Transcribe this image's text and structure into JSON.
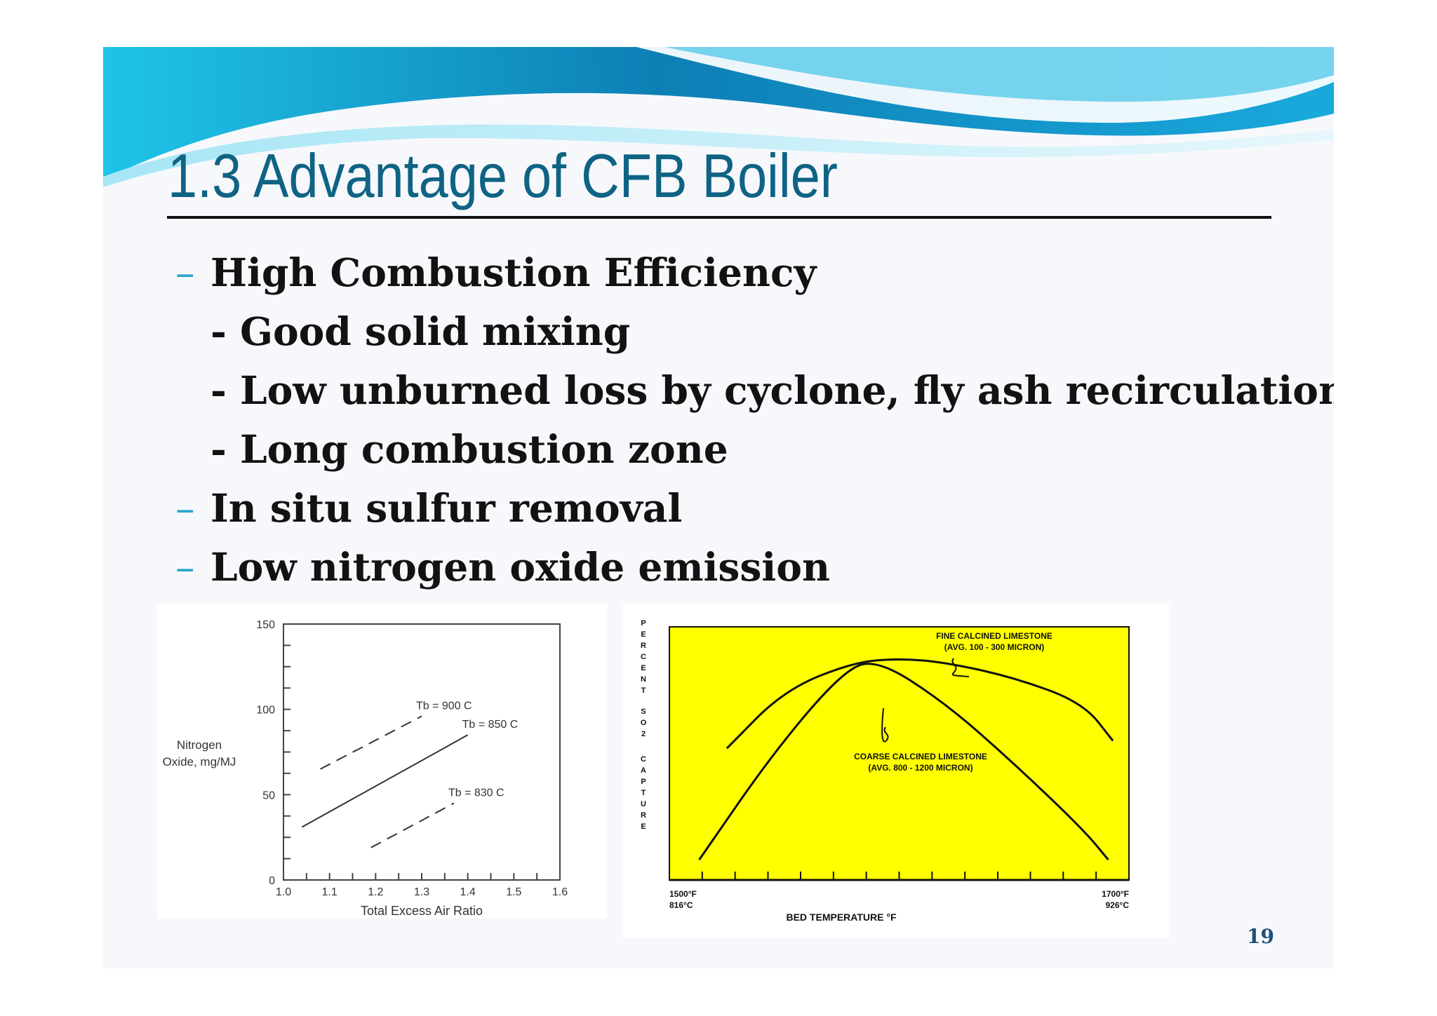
{
  "slide": {
    "title": "1.3 Advantage of CFB Boiler",
    "page_number": "19",
    "bullets": [
      {
        "level": 1,
        "marker": "–",
        "text": "High Combustion Efficiency"
      },
      {
        "level": 2,
        "marker": "",
        "text": "- Good solid mixing"
      },
      {
        "level": 2,
        "marker": "",
        "text": "- Low unburned loss by cyclone, fly ash recirculation"
      },
      {
        "level": 2,
        "marker": "",
        "text": "- Long combustion zone"
      },
      {
        "level": 1,
        "marker": "–",
        "text": "In situ sulfur removal"
      },
      {
        "level": 1,
        "marker": "–",
        "text": "Low nitrogen oxide emission"
      }
    ],
    "colors": {
      "title": "#0f6384",
      "dash": "#2aa5cc",
      "banner_dark": "#0b7fb0",
      "banner_light": "#22c4e6",
      "so2_plot_bg": "#ffff00"
    }
  },
  "chart_data": [
    {
      "type": "line",
      "xlabel": "Total Excess Air Ratio",
      "ylabel": [
        "Nitrogen",
        "Oxide, mg/MJ"
      ],
      "xlim": [
        1.0,
        1.6
      ],
      "ylim": [
        0,
        150
      ],
      "x_ticks": [
        "1.0",
        "1.1",
        "1.2",
        "1.3",
        "1.4",
        "1.5",
        "1.6"
      ],
      "y_ticks": [
        "0",
        "50",
        "100",
        "150"
      ],
      "grid": false,
      "series": [
        {
          "name": "Tb = 900 C",
          "style": "dashed",
          "x": [
            1.08,
            1.3
          ],
          "y": [
            65,
            96
          ]
        },
        {
          "name": "Tb = 850 C",
          "style": "solid",
          "x": [
            1.04,
            1.4
          ],
          "y": [
            31,
            85
          ]
        },
        {
          "name": "Tb = 830 C",
          "style": "dashed",
          "x": [
            1.19,
            1.37
          ],
          "y": [
            19,
            45
          ]
        }
      ]
    },
    {
      "type": "line",
      "xlabel": "BED TEMPERATURE °F",
      "ylabel": "PERCENT SO2 CAPTURE",
      "xlim": [
        1500,
        1700
      ],
      "x_tick_labels": [
        {
          "value": 1500,
          "f": "1500°F",
          "c": "816°C"
        },
        {
          "value": 1700,
          "f": "1700°F",
          "c": "926°C"
        }
      ],
      "x_minor_ticks": [
        1514.3,
        1528.6,
        1542.9,
        1557.1,
        1571.4,
        1585.7,
        1600,
        1614.3,
        1628.6,
        1642.9,
        1657.1,
        1671.4,
        1685.7
      ],
      "plot_background": "#ffff00",
      "ylim": [
        0,
        100
      ],
      "series": [
        {
          "name": [
            "FINE CALCINED LIMESTONE",
            "(AVG. 100 - 300 MICRON)"
          ],
          "x": [
            1525,
            1550,
            1580,
            1600,
            1620,
            1650,
            1680,
            1693
          ],
          "y": [
            52,
            75,
            86,
            87.5,
            86,
            80,
            70,
            55
          ]
        },
        {
          "name": [
            "COARSE CALCINED LIMESTONE",
            "(AVG. 800 - 1200 MICRON)"
          ],
          "x": [
            1513,
            1545,
            1575,
            1590,
            1620,
            1650,
            1680,
            1691
          ],
          "y": [
            8,
            50,
            82,
            87.5,
            70,
            46,
            20,
            8
          ]
        }
      ]
    }
  ]
}
